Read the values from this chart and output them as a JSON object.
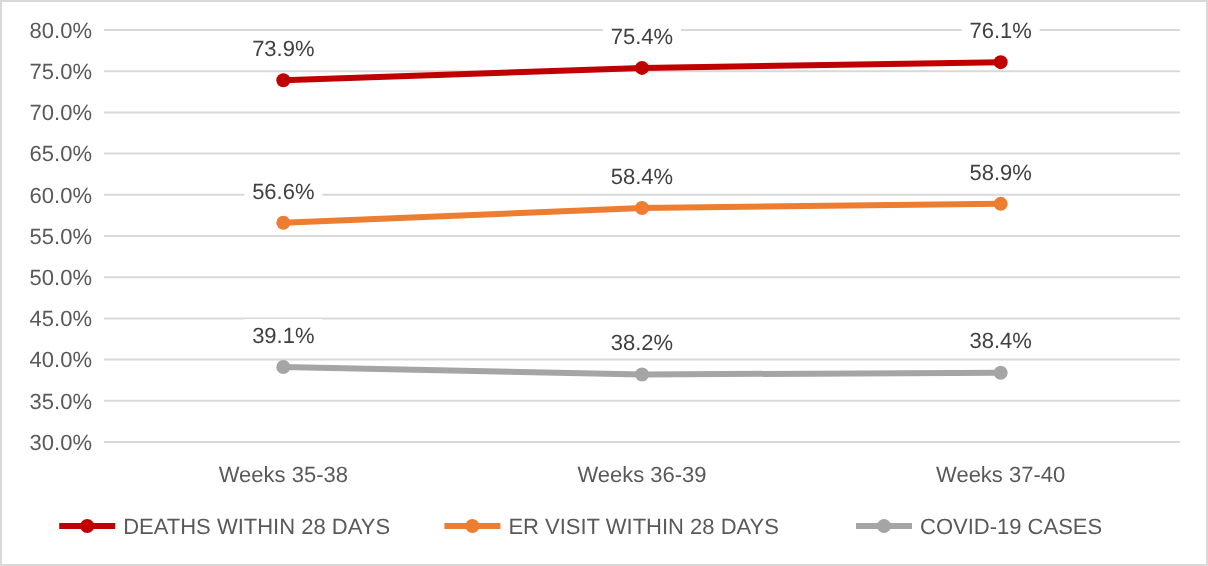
{
  "chart_data": {
    "type": "line",
    "categories": [
      "Weeks 35-38",
      "Weeks 36-39",
      "Weeks 37-40"
    ],
    "series": [
      {
        "name": "DEATHS WITHIN 28 DAYS",
        "color": "#c00000",
        "values": [
          73.9,
          75.4,
          76.1
        ],
        "value_labels": [
          "73.9%",
          "75.4%",
          "76.1%"
        ]
      },
      {
        "name": "ER VISIT WITHIN 28 DAYS",
        "color": "#ed7d31",
        "values": [
          56.6,
          58.4,
          58.9
        ],
        "value_labels": [
          "56.6%",
          "58.4%",
          "58.9%"
        ]
      },
      {
        "name": "COVID-19 CASES",
        "color": "#a5a5a5",
        "values": [
          39.1,
          38.2,
          38.4
        ],
        "value_labels": [
          "39.1%",
          "38.2%",
          "38.4%"
        ]
      }
    ],
    "ylim": [
      30,
      80
    ],
    "yticks": [
      {
        "value": 30,
        "label": "30.0%"
      },
      {
        "value": 35,
        "label": "35.0%"
      },
      {
        "value": 40,
        "label": "40.0%"
      },
      {
        "value": 45,
        "label": "45.0%"
      },
      {
        "value": 50,
        "label": "50.0%"
      },
      {
        "value": 55,
        "label": "55.0%"
      },
      {
        "value": 60,
        "label": "60.0%"
      },
      {
        "value": 65,
        "label": "65.0%"
      },
      {
        "value": 70,
        "label": "70.0%"
      },
      {
        "value": 75,
        "label": "75.0%"
      },
      {
        "value": 80,
        "label": "80.0%"
      }
    ],
    "grid": "y",
    "legend": "bottom",
    "marker": "circle",
    "line_style": "solid"
  }
}
